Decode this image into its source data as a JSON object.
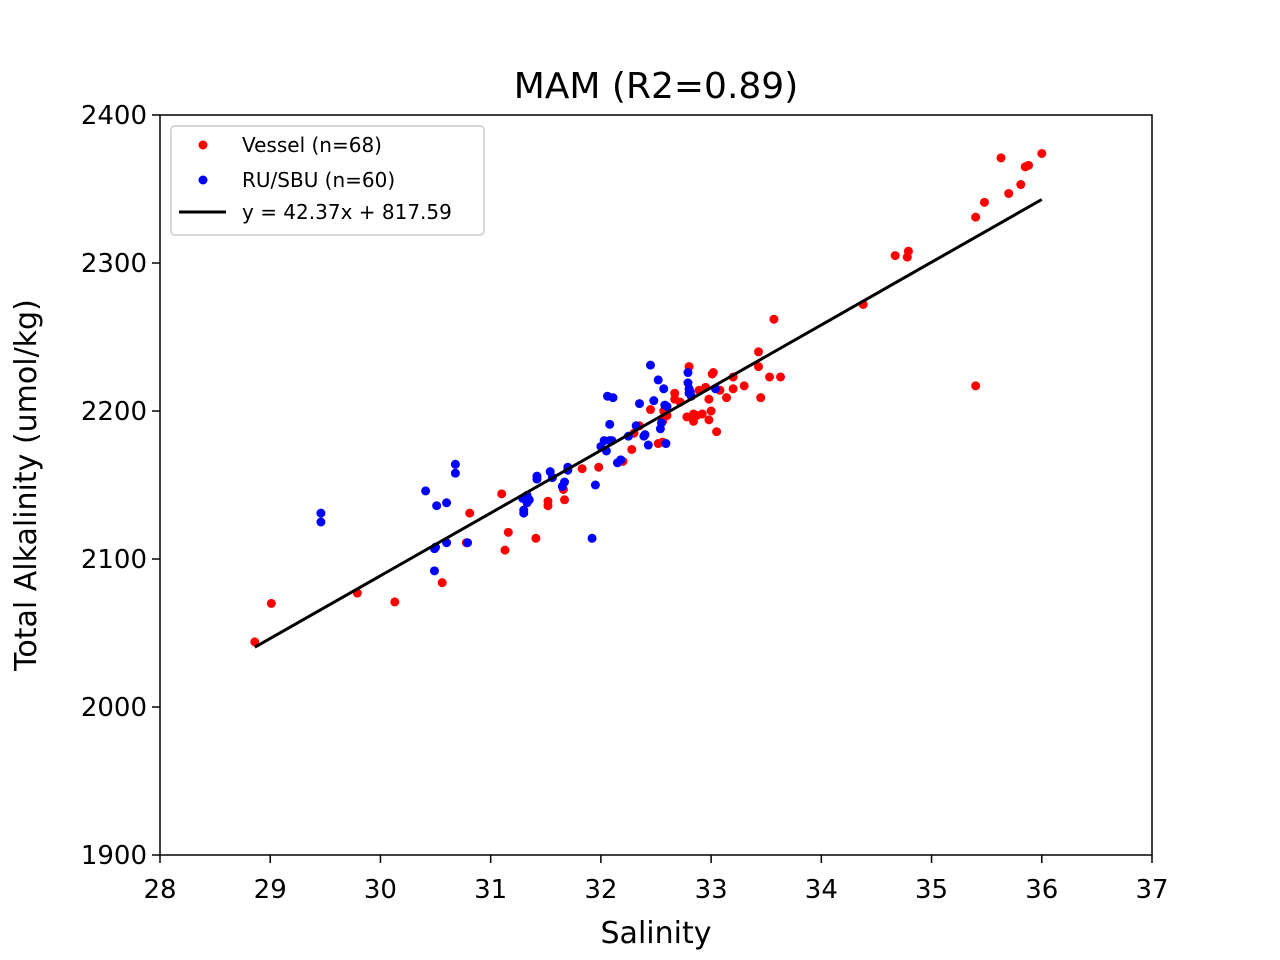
{
  "chart_data": {
    "type": "scatter",
    "title": "MAM (R2=0.89)",
    "xlabel": "Salinity",
    "ylabel": "Total Alkalinity (umol/kg)",
    "xlim": [
      28,
      37
    ],
    "ylim": [
      1900,
      2400
    ],
    "xticks": [
      28,
      29,
      30,
      31,
      32,
      33,
      34,
      35,
      36,
      37
    ],
    "yticks": [
      1900,
      2000,
      2100,
      2200,
      2300,
      2400
    ],
    "grid": false,
    "legend_position": "top-left",
    "series": [
      {
        "name": "Vessel (n=68)",
        "color": "#ff0000",
        "points": [
          [
            28.86,
            2044
          ],
          [
            29.01,
            2070
          ],
          [
            29.79,
            2077
          ],
          [
            30.13,
            2071
          ],
          [
            30.56,
            2084
          ],
          [
            30.78,
            2111
          ],
          [
            30.81,
            2131
          ],
          [
            31.1,
            2144
          ],
          [
            31.13,
            2106
          ],
          [
            31.16,
            2118
          ],
          [
            31.41,
            2114
          ],
          [
            31.52,
            2136
          ],
          [
            31.52,
            2139
          ],
          [
            31.67,
            2140
          ],
          [
            31.83,
            2161
          ],
          [
            31.98,
            2162
          ],
          [
            32.28,
            2174
          ],
          [
            32.3,
            2185
          ],
          [
            32.52,
            2178
          ],
          [
            32.56,
            2179
          ],
          [
            32.56,
            2193
          ],
          [
            32.57,
            2200
          ],
          [
            32.6,
            2197
          ],
          [
            32.67,
            2208
          ],
          [
            32.67,
            2212
          ],
          [
            32.78,
            2196
          ],
          [
            32.8,
            2230
          ],
          [
            32.84,
            2193
          ],
          [
            32.84,
            2198
          ],
          [
            32.87,
            2197
          ],
          [
            32.89,
            2214
          ],
          [
            32.92,
            2198
          ],
          [
            32.95,
            2216
          ],
          [
            32.98,
            2194
          ],
          [
            32.98,
            2208
          ],
          [
            33.0,
            2200
          ],
          [
            33.01,
            2225
          ],
          [
            33.02,
            2226
          ],
          [
            33.05,
            2186
          ],
          [
            33.14,
            2209
          ],
          [
            33.2,
            2223
          ],
          [
            33.2,
            2215
          ],
          [
            33.3,
            2217
          ],
          [
            33.43,
            2240
          ],
          [
            33.43,
            2230
          ],
          [
            33.45,
            2209
          ],
          [
            33.53,
            2223
          ],
          [
            33.57,
            2262
          ],
          [
            33.63,
            2223
          ],
          [
            34.38,
            2272
          ],
          [
            34.67,
            2305
          ],
          [
            34.78,
            2304
          ],
          [
            34.79,
            2308
          ],
          [
            35.4,
            2217
          ],
          [
            35.4,
            2331
          ],
          [
            35.48,
            2341
          ],
          [
            35.63,
            2371
          ],
          [
            35.7,
            2347
          ],
          [
            35.81,
            2353
          ],
          [
            35.85,
            2365
          ],
          [
            35.88,
            2366
          ],
          [
            36.0,
            2374
          ],
          [
            31.66,
            2147
          ],
          [
            32.35,
            2190
          ],
          [
            32.72,
            2206
          ],
          [
            32.45,
            2201
          ],
          [
            33.08,
            2214
          ],
          [
            32.2,
            2166
          ]
        ]
      },
      {
        "name": "RU/SBU (n=60)",
        "color": "#0000ff",
        "points": [
          [
            29.46,
            2131
          ],
          [
            29.46,
            2125
          ],
          [
            30.41,
            2146
          ],
          [
            30.49,
            2107
          ],
          [
            30.49,
            2092
          ],
          [
            30.51,
            2136
          ],
          [
            30.6,
            2138
          ],
          [
            30.6,
            2111
          ],
          [
            30.68,
            2164
          ],
          [
            30.68,
            2158
          ],
          [
            30.79,
            2111
          ],
          [
            31.29,
            2141
          ],
          [
            31.3,
            2133
          ],
          [
            31.3,
            2131
          ],
          [
            31.33,
            2143
          ],
          [
            31.33,
            2138
          ],
          [
            31.42,
            2154
          ],
          [
            31.42,
            2156
          ],
          [
            31.54,
            2159
          ],
          [
            31.56,
            2155
          ],
          [
            31.65,
            2149
          ],
          [
            31.67,
            2152
          ],
          [
            31.7,
            2162
          ],
          [
            31.92,
            2114
          ],
          [
            31.95,
            2150
          ],
          [
            32.03,
            2180
          ],
          [
            32.05,
            2173
          ],
          [
            32.06,
            2210
          ],
          [
            32.08,
            2180
          ],
          [
            32.08,
            2191
          ],
          [
            32.11,
            2209
          ],
          [
            32.15,
            2165
          ],
          [
            32.18,
            2167
          ],
          [
            32.32,
            2190
          ],
          [
            32.35,
            2205
          ],
          [
            32.39,
            2183
          ],
          [
            32.43,
            2177
          ],
          [
            32.45,
            2231
          ],
          [
            32.48,
            2207
          ],
          [
            32.52,
            2221
          ],
          [
            32.54,
            2188
          ],
          [
            32.57,
            2215
          ],
          [
            32.58,
            2204
          ],
          [
            32.59,
            2178
          ],
          [
            32.79,
            2226
          ],
          [
            32.79,
            2219
          ],
          [
            32.8,
            2215
          ],
          [
            32.81,
            2213
          ],
          [
            32.82,
            2210
          ],
          [
            33.04,
            2215
          ],
          [
            31.7,
            2160
          ],
          [
            32.25,
            2183
          ],
          [
            32.4,
            2184
          ],
          [
            32.6,
            2203
          ],
          [
            31.35,
            2140
          ],
          [
            30.5,
            2108
          ],
          [
            32.0,
            2176
          ],
          [
            32.55,
            2192
          ],
          [
            32.1,
            2180
          ],
          [
            32.8,
            2212
          ]
        ]
      },
      {
        "name": "y = 42.37x + 817.59",
        "color": "#000000",
        "type": "line",
        "slope": 42.37,
        "intercept": 817.59,
        "x_range": [
          28.86,
          36.0
        ]
      }
    ]
  }
}
